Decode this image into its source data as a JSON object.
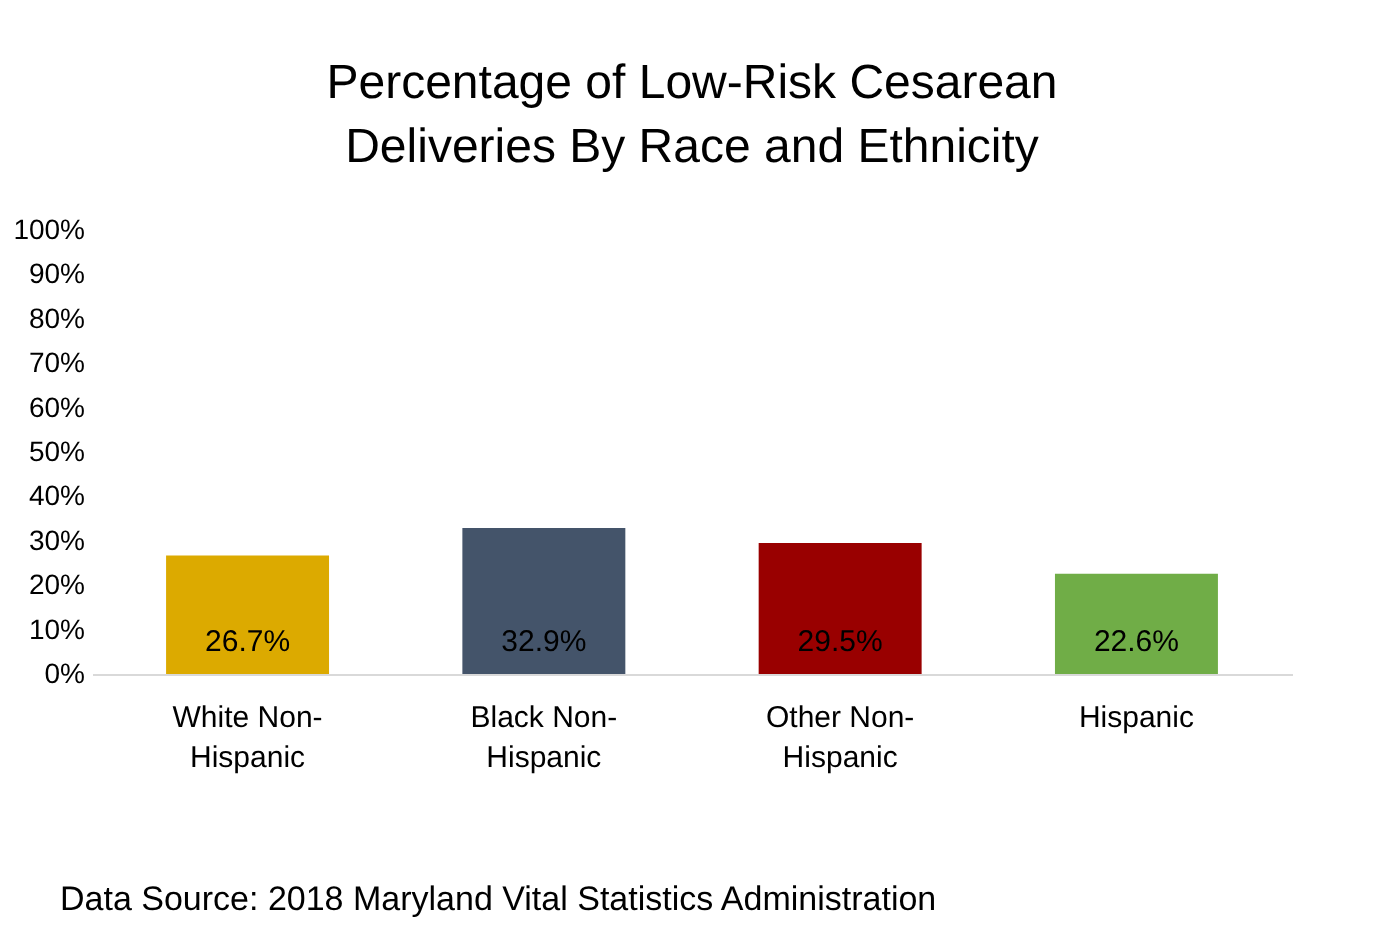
{
  "chart_data": {
    "type": "bar",
    "title": "Percentage of Low-Risk Cesarean Deliveries By Race and Ethnicity",
    "categories": [
      "White Non-Hispanic",
      "Black Non-Hispanic",
      "Other Non-Hispanic",
      "Hispanic"
    ],
    "values": [
      26.7,
      32.9,
      29.5,
      22.6
    ],
    "colors": [
      "#dcaa00",
      "#44546a",
      "#990000",
      "#70ad47"
    ],
    "value_labels": [
      "26.7%",
      "32.9%",
      "29.5%",
      "22.6%"
    ],
    "ylim": [
      0,
      100
    ],
    "yticks": [
      {
        "value": 0,
        "label": "0%"
      },
      {
        "value": 10,
        "label": "10%"
      },
      {
        "value": 20,
        "label": "20%"
      },
      {
        "value": 30,
        "label": "30%"
      },
      {
        "value": 40,
        "label": "40%"
      },
      {
        "value": 50,
        "label": "50%"
      },
      {
        "value": 60,
        "label": "60%"
      },
      {
        "value": 70,
        "label": "70%"
      },
      {
        "value": 80,
        "label": "80%"
      },
      {
        "value": 90,
        "label": "90%"
      },
      {
        "value": 100,
        "label": "100%"
      }
    ],
    "grid": false,
    "annotations": [
      "Data Source: 2018 Maryland Vital Statistics Administration"
    ]
  }
}
